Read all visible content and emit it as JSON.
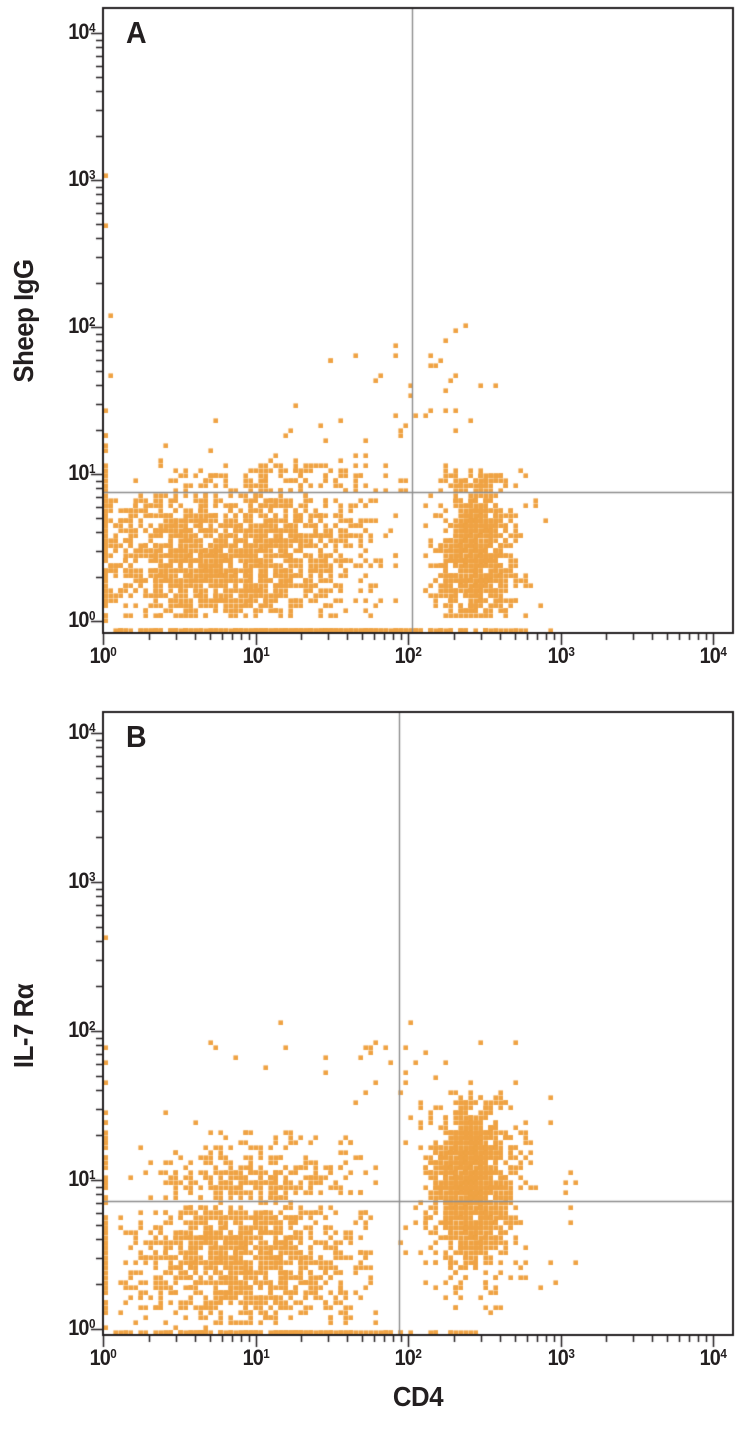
{
  "figure": {
    "background_color": "#ffffff",
    "dot_color": "#efa243",
    "gate_color": "#8c8c8c",
    "frame_color": "#231f20",
    "text_color": "#231f20"
  },
  "chart_data": [
    {
      "type": "scatter",
      "subtype": "flow-cytometry-dot-plot",
      "panel_label": "A",
      "xlabel": "CD4",
      "ylabel": "Sheep IgG",
      "xscale": "log",
      "yscale": "log",
      "xlim": [
        1,
        10000
      ],
      "ylim": [
        1,
        10000
      ],
      "x_tick_exponents": [
        0,
        1,
        2,
        3,
        4
      ],
      "y_tick_exponents": [
        0,
        1,
        2,
        3,
        4
      ],
      "grid": false,
      "legend": false,
      "quadrant_gate": {
        "x": 107,
        "y": 7.6
      },
      "populations": [
        {
          "name": "double-negative-cloud",
          "n": 1500,
          "x": {
            "dist": "normal",
            "mean": 0.8,
            "sd": 0.5,
            "min": 0.02,
            "max": 1.93
          },
          "y": {
            "dist": "normal",
            "mean": 0.48,
            "sd": 0.3,
            "min": 0.04,
            "max": 0.87
          }
        },
        {
          "name": "cd4-positive-column",
          "n": 800,
          "x": {
            "dist": "normal",
            "mean": 2.45,
            "sd": 0.13,
            "min": 2.08,
            "max": 2.92
          },
          "y": {
            "dist": "normal",
            "mean": 0.45,
            "sd": 0.3,
            "min": 0.04,
            "max": 0.87
          }
        },
        {
          "name": "above-gate-band-left",
          "n": 130,
          "x": {
            "dist": "normal",
            "mean": 1.25,
            "sd": 0.5,
            "min": 0.1,
            "max": 2.0
          },
          "y": {
            "dist": "normal",
            "mean": 0.97,
            "sd": 0.07,
            "min": 0.89,
            "max": 1.3
          }
        },
        {
          "name": "above-gate-band-right",
          "n": 70,
          "x": {
            "dist": "normal",
            "mean": 2.45,
            "sd": 0.13,
            "min": 2.1,
            "max": 2.8
          },
          "y": {
            "dist": "normal",
            "mean": 0.96,
            "sd": 0.06,
            "min": 0.89,
            "max": 1.2
          }
        },
        {
          "name": "upper-spray",
          "n": 26,
          "x": {
            "dist": "normal",
            "mean": 2.0,
            "sd": 0.28,
            "min": 1.2,
            "max": 2.6
          },
          "y": {
            "dist": "normal",
            "mean": 1.55,
            "sd": 0.28,
            "min": 1.05,
            "max": 2.1
          }
        },
        {
          "name": "left-axis-pile",
          "n": 70,
          "edge": "left",
          "y": {
            "dist": "normal",
            "mean": 0.5,
            "sd": 0.4,
            "min": 0.02,
            "max": 1.35
          }
        },
        {
          "name": "bottom-axis-row",
          "n": 230,
          "edge": "bottom",
          "x": {
            "dist": "normal",
            "mean": 1.2,
            "sd": 0.8,
            "min": 0.0,
            "max": 3.02
          }
        },
        {
          "name": "mid-sparse",
          "n": 14,
          "x": {
            "dist": "uniform",
            "min": 0.2,
            "max": 1.8
          },
          "y": {
            "dist": "uniform",
            "min": 1.0,
            "max": 1.45
          }
        }
      ],
      "outlier_points": [
        [
          1,
          1150
        ],
        [
          1,
          520
        ],
        [
          1.1,
          120
        ],
        [
          1.1,
          47
        ],
        [
          1,
          28
        ],
        [
          18,
          30
        ],
        [
          65,
          50
        ],
        [
          105,
          42
        ],
        [
          150,
          55
        ],
        [
          210,
          95
        ],
        [
          230,
          110
        ],
        [
          310,
          42
        ]
      ]
    },
    {
      "type": "scatter",
      "subtype": "flow-cytometry-dot-plot",
      "panel_label": "B",
      "xlabel": "CD4",
      "ylabel": "IL-7 Rα",
      "xscale": "log",
      "yscale": "log",
      "xlim": [
        1,
        10000
      ],
      "ylim": [
        1,
        10000
      ],
      "x_tick_exponents": [
        0,
        1,
        2,
        3,
        4
      ],
      "y_tick_exponents": [
        0,
        1,
        2,
        3,
        4
      ],
      "grid": false,
      "legend": false,
      "quadrant_gate": {
        "x": 87,
        "y": 7.2
      },
      "populations": [
        {
          "name": "left-cloud-below-gate",
          "n": 950,
          "x": {
            "dist": "normal",
            "mean": 0.95,
            "sd": 0.42,
            "min": 0.1,
            "max": 1.88
          },
          "y": {
            "dist": "normal",
            "mean": 0.5,
            "sd": 0.28,
            "min": 0.04,
            "max": 0.84
          }
        },
        {
          "name": "left-cloud-above-gate",
          "n": 280,
          "x": {
            "dist": "normal",
            "mean": 1.0,
            "sd": 0.38,
            "min": 0.1,
            "max": 1.8
          },
          "y": {
            "dist": "normal",
            "mean": 1.02,
            "sd": 0.14,
            "min": 0.87,
            "max": 1.55
          }
        },
        {
          "name": "cd4-il7r-blob",
          "n": 1200,
          "x": {
            "dist": "normal",
            "mean": 2.42,
            "sd": 0.13,
            "min": 2.02,
            "max": 2.8
          },
          "y": {
            "dist": "normal",
            "mean": 1.02,
            "sd": 0.3,
            "min": 0.12,
            "max": 1.58
          }
        },
        {
          "name": "blob-skirt",
          "n": 90,
          "x": {
            "dist": "normal",
            "mean": 2.42,
            "sd": 0.25,
            "min": 1.95,
            "max": 2.95
          },
          "y": {
            "dist": "normal",
            "mean": 0.9,
            "sd": 0.45,
            "min": 0.05,
            "max": 1.75
          }
        },
        {
          "name": "left-axis-pile",
          "n": 60,
          "edge": "left",
          "y": {
            "dist": "normal",
            "mean": 0.7,
            "sd": 0.45,
            "min": 0.02,
            "max": 1.55
          }
        },
        {
          "name": "bottom-axis-row",
          "n": 130,
          "edge": "bottom",
          "x": {
            "dist": "normal",
            "mean": 1.1,
            "sd": 0.7,
            "min": 0.0,
            "max": 2.5
          }
        },
        {
          "name": "upper-spray",
          "n": 22,
          "x": {
            "dist": "normal",
            "mean": 1.9,
            "sd": 0.35,
            "min": 0.7,
            "max": 2.6
          },
          "y": {
            "dist": "normal",
            "mean": 1.75,
            "sd": 0.15,
            "min": 1.57,
            "max": 2.08
          }
        },
        {
          "name": "right-sparse",
          "n": 10,
          "x": {
            "dist": "uniform",
            "min": 2.75,
            "max": 3.1
          },
          "y": {
            "dist": "uniform",
            "min": 0.3,
            "max": 1.1
          }
        }
      ],
      "outlier_points": [
        [
          1,
          440
        ],
        [
          1,
          80
        ],
        [
          1,
          62
        ],
        [
          1,
          47
        ],
        [
          5,
          88
        ],
        [
          12,
          60
        ],
        [
          60,
          90
        ],
        [
          100,
          120
        ],
        [
          130,
          75
        ],
        [
          300,
          88
        ],
        [
          500,
          85
        ],
        [
          1050,
          10
        ],
        [
          1250,
          3
        ],
        [
          850,
          25
        ],
        [
          2.5,
          30
        ],
        [
          45,
          35
        ]
      ]
    }
  ]
}
